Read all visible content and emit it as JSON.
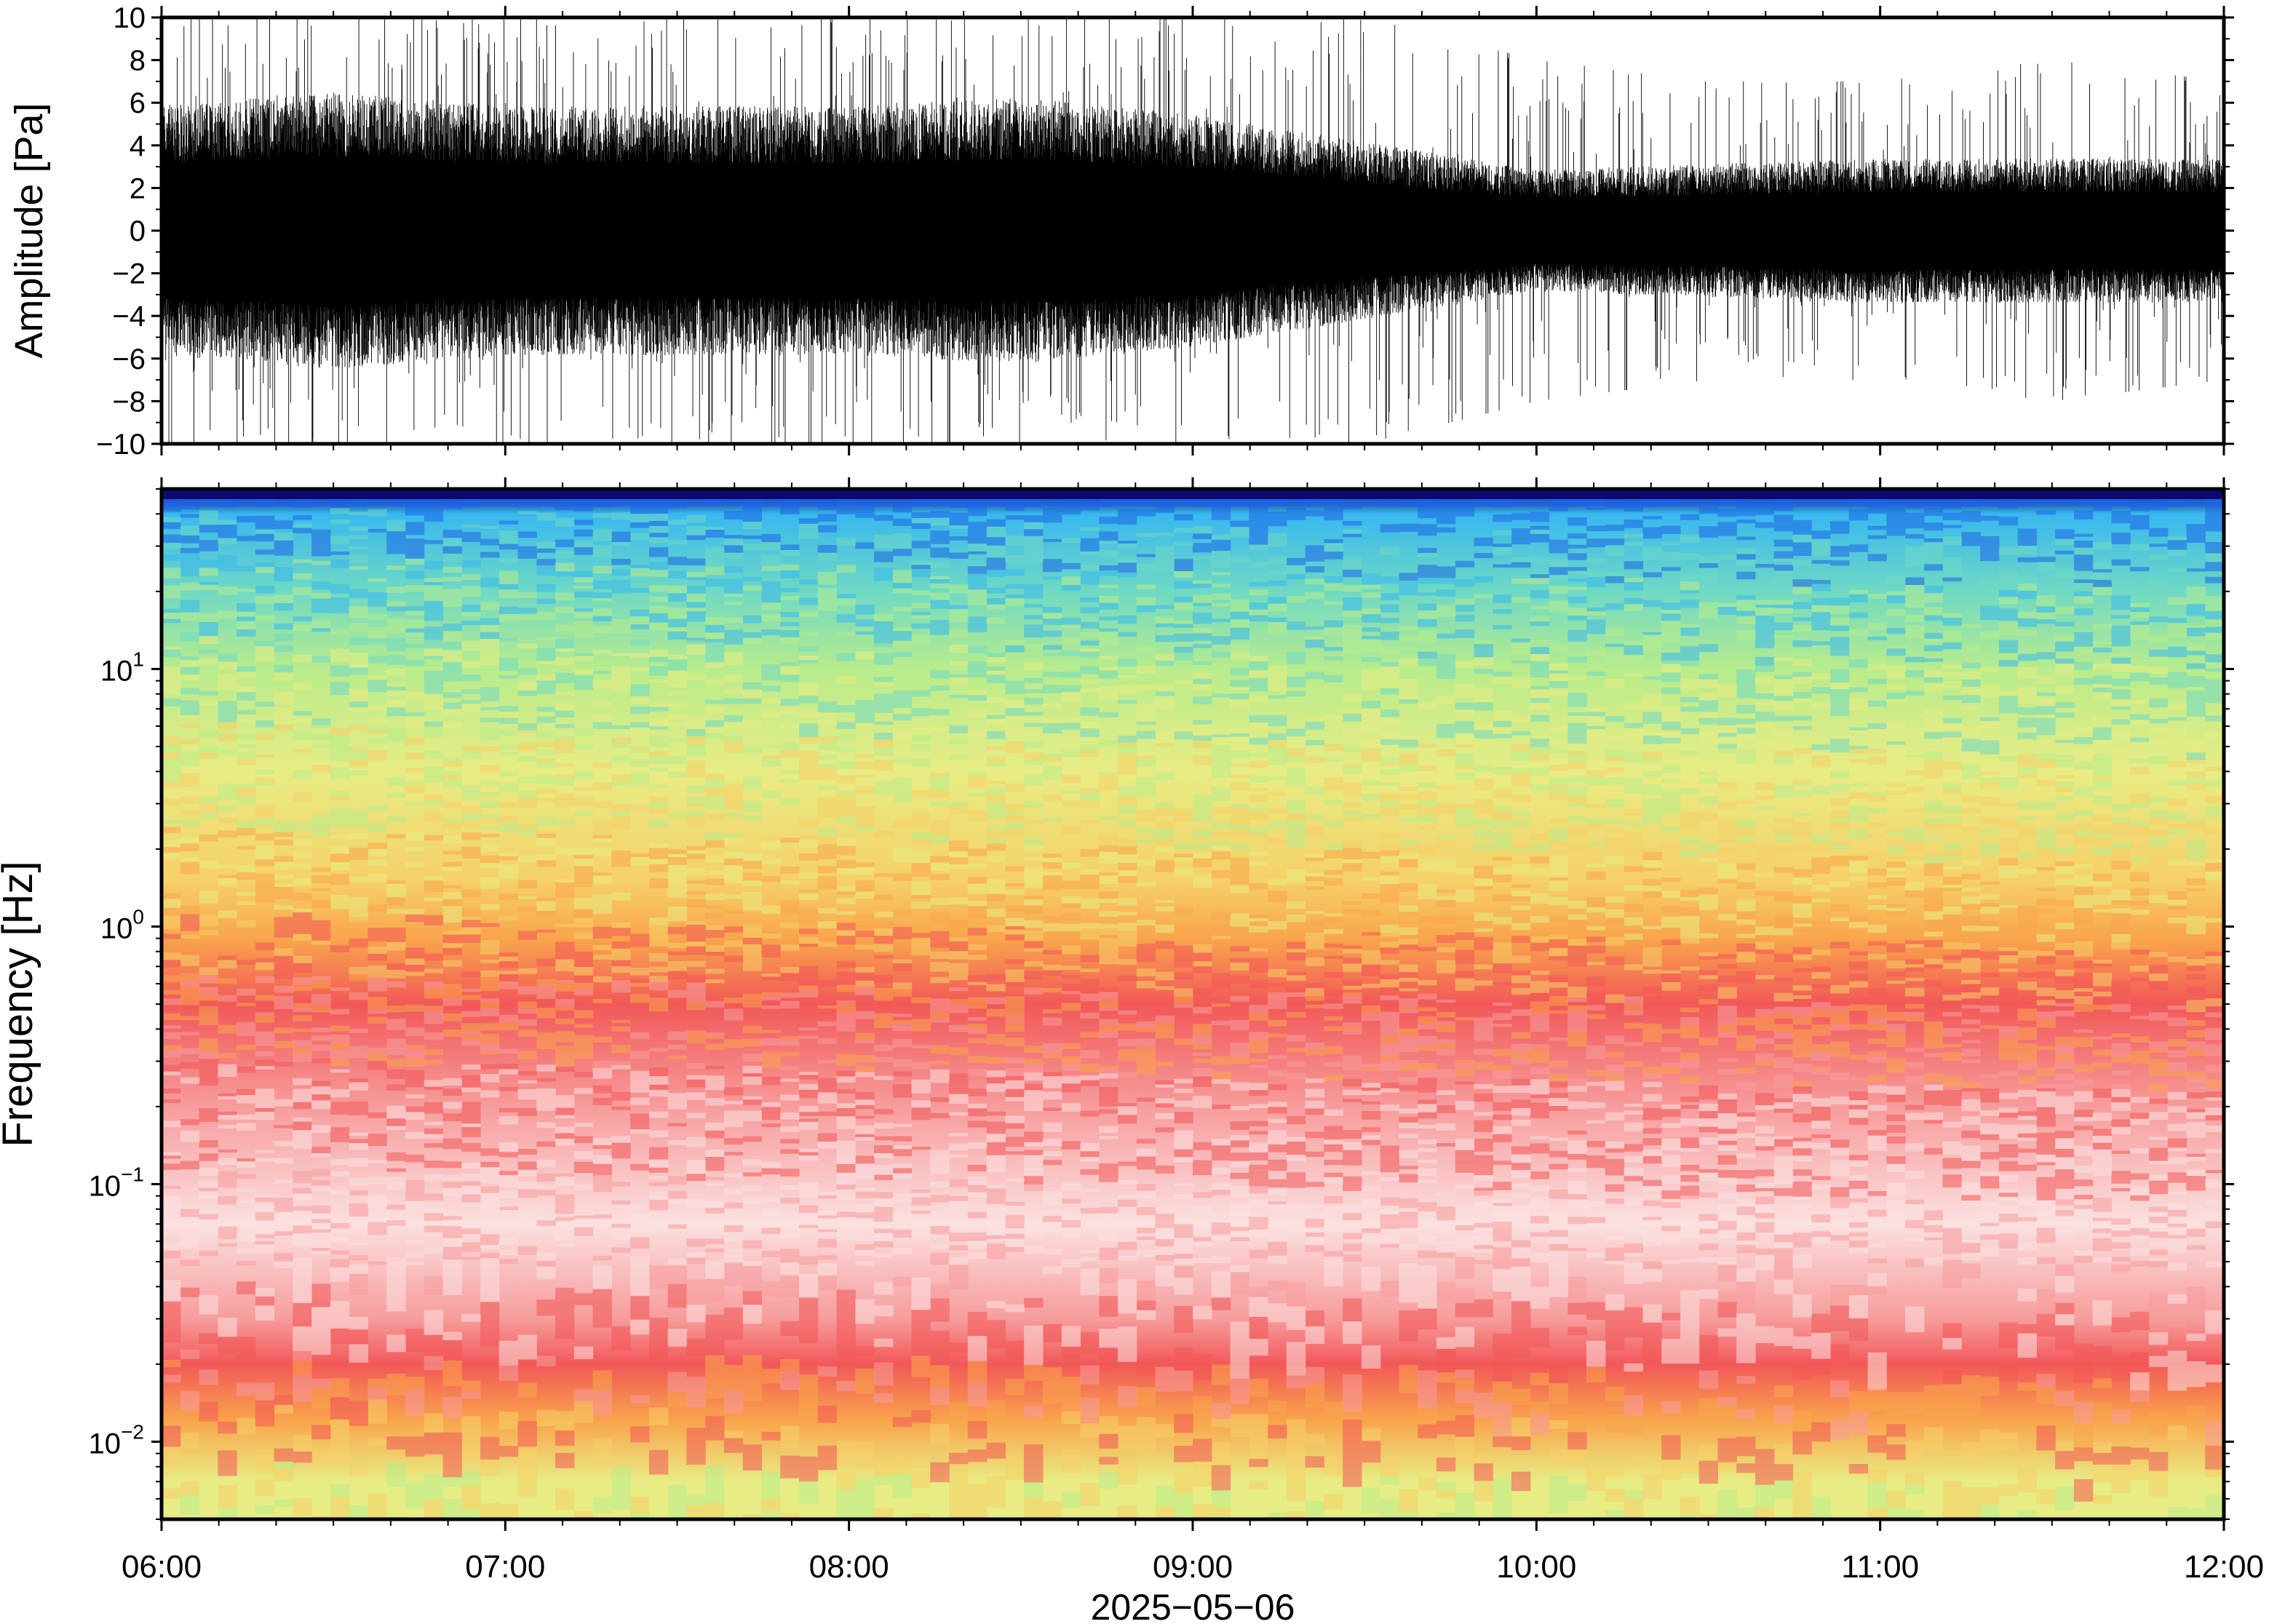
{
  "chart_data": [
    {
      "type": "line",
      "panel": "waveform",
      "ylabel": "Amplitude [Pa]",
      "ylim": [
        -10,
        10
      ],
      "yticks": [
        10,
        8,
        6,
        4,
        2,
        0,
        -2,
        -4,
        -6,
        -8,
        -10
      ],
      "ytick_labels": [
        "10",
        "8",
        "6",
        "4",
        "2",
        "0",
        "−2",
        "−4",
        "−6",
        "−8",
        "−10"
      ],
      "xlim": [
        "06:00",
        "12:00"
      ],
      "grid": false,
      "envelope": {
        "description_hours": [
          6.0,
          6.5,
          7.0,
          7.5,
          8.0,
          8.5,
          9.0,
          9.5,
          10.0,
          10.5,
          11.0,
          11.5,
          12.0
        ],
        "typical_abs_amplitude": [
          4.5,
          5.0,
          4.5,
          4.5,
          4.5,
          4.8,
          4.2,
          3.2,
          2.2,
          2.4,
          2.6,
          2.6,
          2.6
        ],
        "peak_abs_amplitude": [
          10,
          10,
          10,
          10,
          10,
          10,
          10,
          10,
          8,
          7,
          7,
          8,
          7
        ]
      },
      "line_color": "#000000"
    },
    {
      "type": "heatmap",
      "panel": "spectrogram",
      "ylabel": "Frequency [Hz]",
      "yscale": "log",
      "ylim": [
        0.005,
        50
      ],
      "yticks": [
        {
          "base": "10",
          "exp": "1",
          "value": 10
        },
        {
          "base": "10",
          "exp": "0",
          "value": 1
        },
        {
          "base": "10",
          "exp": "−1",
          "value": 0.1
        },
        {
          "base": "10",
          "exp": "−2",
          "value": 0.01
        }
      ],
      "xlabel": "2025−05−06",
      "xticks": [
        "06:00",
        "07:00",
        "08:00",
        "09:00",
        "10:00",
        "11:00",
        "12:00"
      ],
      "xlim_hours": [
        6,
        12
      ],
      "colormap": [
        "#0a0a6e",
        "#1e64e6",
        "#38b8ef",
        "#6fd9c4",
        "#b8ec8c",
        "#e8ec84",
        "#f6d068",
        "#f9a54c",
        "#f25858",
        "#f79c9c",
        "#fbe0e0"
      ],
      "color_bands": [
        {
          "freq_hz": 48,
          "color": "#0a0a6e"
        },
        {
          "freq_hz": 40,
          "color": "#38b8ef"
        },
        {
          "freq_hz": 20,
          "color": "#6fd9c4"
        },
        {
          "freq_hz": 10,
          "color": "#b8ec8c"
        },
        {
          "freq_hz": 4,
          "color": "#e8ec84"
        },
        {
          "freq_hz": 1.5,
          "color": "#f6d068"
        },
        {
          "freq_hz": 0.9,
          "color": "#f9a54c"
        },
        {
          "freq_hz": 0.5,
          "color": "#f25858"
        },
        {
          "freq_hz": 0.2,
          "color": "#f79c9c"
        },
        {
          "freq_hz": 0.07,
          "color": "#fbe0e0"
        },
        {
          "freq_hz": 0.03,
          "color": "#f79c9c"
        },
        {
          "freq_hz": 0.02,
          "color": "#f25858"
        },
        {
          "freq_hz": 0.012,
          "color": "#f9a54c"
        },
        {
          "freq_hz": 0.007,
          "color": "#e8ec84"
        }
      ]
    }
  ]
}
